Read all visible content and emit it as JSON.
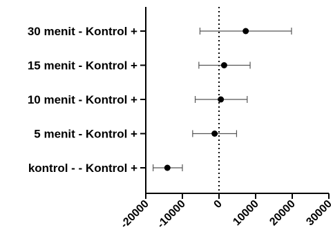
{
  "chart_data": {
    "type": "scatter",
    "subtype": "forest-plot",
    "title": "",
    "xlabel": "",
    "ylabel": "",
    "categories": [
      "30 menit - Kontrol +",
      "15 menit - Kontrol +",
      "10 menit - Kontrol +",
      "5 menit - Kontrol +",
      "kontrol - - Kontrol +"
    ],
    "points": [
      {
        "label": "30 menit - Kontrol +",
        "estimate": 7300,
        "lower": -5200,
        "upper": 19800
      },
      {
        "label": "15 menit - Kontrol +",
        "estimate": 1400,
        "lower": -5500,
        "upper": 8500
      },
      {
        "label": "10 menit - Kontrol +",
        "estimate": 500,
        "lower": -6500,
        "upper": 7700
      },
      {
        "label": "5 menit - Kontrol +",
        "estimate": -1200,
        "lower": -7200,
        "upper": 4800
      },
      {
        "label": "kontrol - - Kontrol +",
        "estimate": -14100,
        "lower": -18000,
        "upper": -10000
      }
    ],
    "xlim": [
      -20000,
      30000
    ],
    "xticks": [
      "-20000",
      "-10000",
      "0",
      "10000",
      "20000",
      "30000"
    ],
    "xtick_values": [
      -20000,
      -10000,
      0,
      10000,
      20000,
      30000
    ],
    "reference_line": 0,
    "grid": false,
    "legend": "none",
    "colors": {
      "marker": "#000000",
      "errorbar": "#555555",
      "axis": "#000000",
      "reference": "#000000"
    }
  }
}
